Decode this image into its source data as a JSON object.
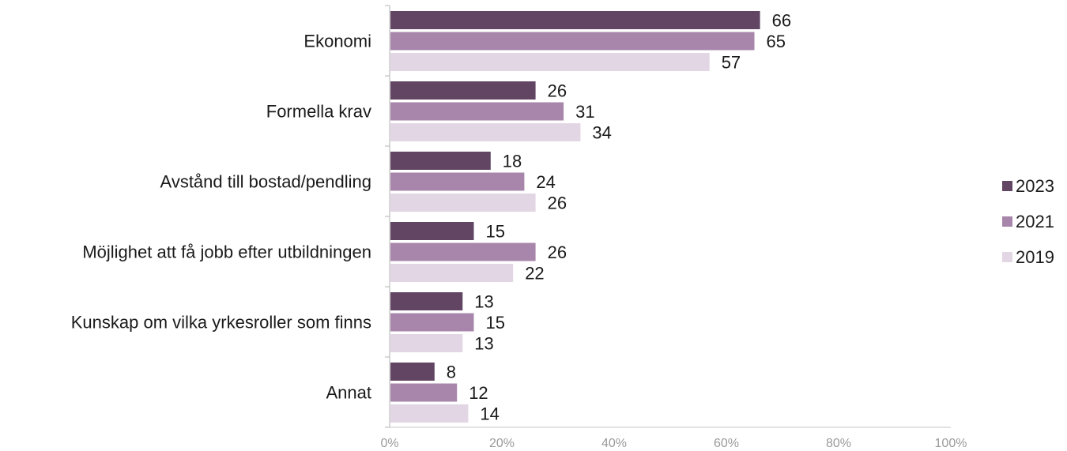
{
  "chart_data": {
    "type": "bar",
    "orientation": "horizontal",
    "categories": [
      "Ekonomi",
      "Formella krav",
      "Avstånd till bostad/pendling",
      "Möjlighet att få jobb efter utbildningen",
      "Kunskap om vilka yrkesroller som finns",
      "Annat"
    ],
    "series": [
      {
        "name": "2023",
        "color": "#614563",
        "values": [
          66,
          26,
          18,
          15,
          13,
          8
        ]
      },
      {
        "name": "2021",
        "color": "#a886ab",
        "values": [
          65,
          31,
          24,
          26,
          15,
          12
        ]
      },
      {
        "name": "2019",
        "color": "#e3d6e4",
        "values": [
          57,
          34,
          26,
          22,
          13,
          14
        ]
      }
    ],
    "xlim": [
      0,
      100
    ],
    "xticks": [
      0,
      20,
      40,
      60,
      80,
      100
    ],
    "xtick_labels": [
      "0%",
      "20%",
      "40%",
      "60%",
      "80%",
      "100%"
    ],
    "title": "",
    "xlabel": "",
    "ylabel": "",
    "grid": false,
    "legend_position": "right"
  }
}
